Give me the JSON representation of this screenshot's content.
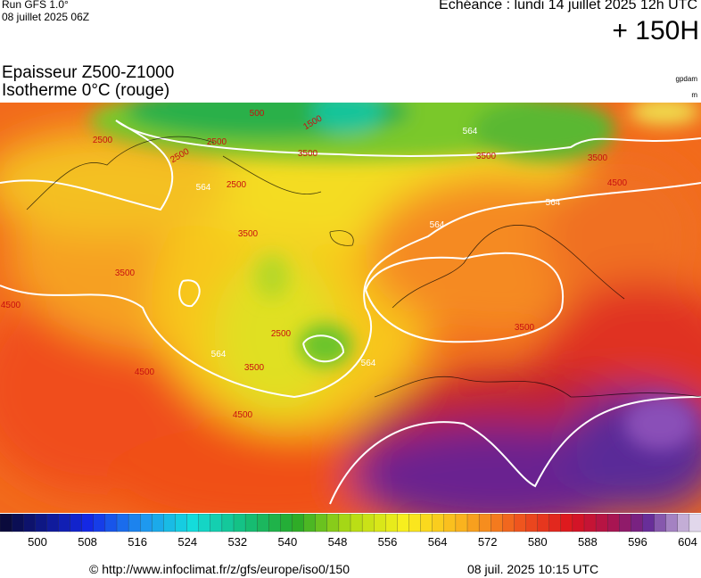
{
  "header": {
    "run": "Run GFS 1.0°",
    "run_date": "08 juillet 2025 06Z",
    "echeance": "Echéance : lundi 14 juillet 2025 12h UTC",
    "lead": "+ 150H",
    "title": "Epaisseur Z500-Z1000",
    "subtitle": "Isotherme 0°C (rouge)",
    "unit_top": "gpdam",
    "unit_bottom": "m"
  },
  "map": {
    "contour_labels": [
      "2500",
      "500",
      "1500",
      "2500",
      "2500",
      "3500",
      "564",
      "3500",
      "3500",
      "564",
      "2500",
      "564",
      "3500",
      "4500",
      "564",
      "3500",
      "4500",
      "4500",
      "564",
      "3500",
      "564",
      "3500",
      "2500",
      "4500"
    ]
  },
  "colorbar": {
    "labels": [
      "500",
      "508",
      "516",
      "524",
      "532",
      "540",
      "548",
      "556",
      "564",
      "572",
      "580",
      "588",
      "596",
      "604"
    ]
  },
  "footer": {
    "url": "© http://www.infoclimat.fr/z/gfs/europe/iso0/150",
    "generated": "08 juil. 2025 10:15 UTC"
  }
}
